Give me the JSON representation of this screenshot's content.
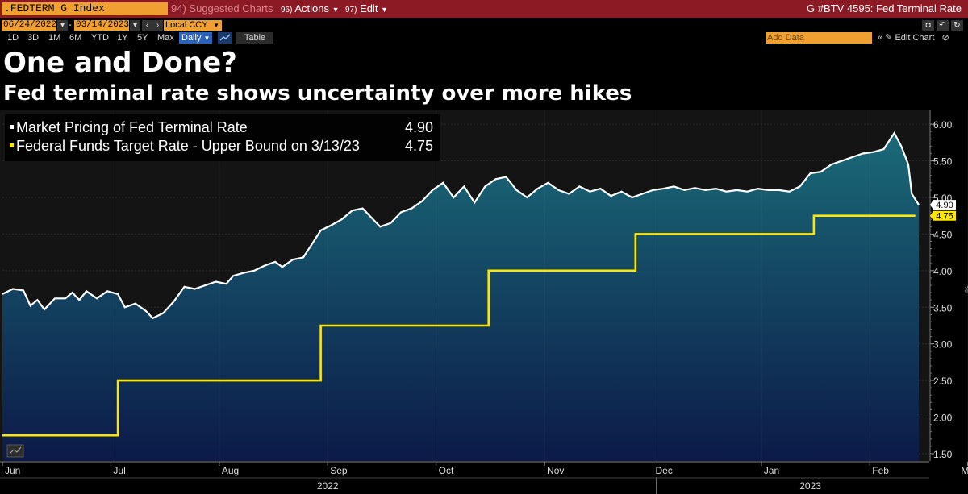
{
  "toolbar": {
    "command": ".FEDTERM G Index",
    "suggested_num": "94)",
    "suggested": "Suggested Charts",
    "actions_num": "96)",
    "actions": "Actions",
    "edit_num": "97)",
    "edit": "Edit",
    "window_title": "G #BTV 4595: Fed Terminal Rate"
  },
  "controls": {
    "start_date": "06/24/2022",
    "end_date": "03/14/2023",
    "currency": "Local CCY",
    "periods": [
      "1D",
      "3D",
      "1M",
      "6M",
      "YTD",
      "1Y",
      "5Y",
      "Max"
    ],
    "frequency": "Daily",
    "table": "Table",
    "add_data_placeholder": "Add Data",
    "edit_chart": "Edit Chart"
  },
  "headline": "One and Done?",
  "subheadline": "Fed terminal rate shows uncertainty over more hikes",
  "chart_data": {
    "type": "area",
    "ylim": [
      1.4,
      6.2
    ],
    "yticks": [
      "1.50",
      "2.00",
      "2.50",
      "3.00",
      "3.50",
      "4.00",
      "4.50",
      "5.00",
      "5.50",
      "6.00"
    ],
    "ytick_values": [
      1.5,
      2.0,
      2.5,
      3.0,
      3.5,
      4.0,
      4.5,
      5.0,
      5.5,
      6.0
    ],
    "y_unit": "%",
    "x_range_days": [
      0,
      265
    ],
    "x_month_labels": [
      "Jun",
      "Jul",
      "Aug",
      "Sep",
      "Oct",
      "Nov",
      "Dec",
      "Jan",
      "Feb",
      "Mar"
    ],
    "x_month_days": [
      0,
      31,
      62,
      93,
      124,
      155,
      186,
      217,
      248,
      276
    ],
    "x_year_labels": [
      "2022",
      "2023"
    ],
    "x_year_days": [
      93,
      231
    ],
    "x_year_boundary_day": 187,
    "series": [
      {
        "name": "Market Pricing of Fed Terminal Rate",
        "last_value": "4.90",
        "color": "#ffffff",
        "fill_top": "#1a6a78",
        "fill_bottom": "#0c1a48",
        "points": [
          [
            0,
            3.68
          ],
          [
            3,
            3.75
          ],
          [
            6,
            3.73
          ],
          [
            8,
            3.52
          ],
          [
            10,
            3.6
          ],
          [
            12,
            3.47
          ],
          [
            15,
            3.62
          ],
          [
            18,
            3.62
          ],
          [
            20,
            3.7
          ],
          [
            22,
            3.6
          ],
          [
            24,
            3.72
          ],
          [
            27,
            3.62
          ],
          [
            30,
            3.72
          ],
          [
            33,
            3.68
          ],
          [
            35,
            3.5
          ],
          [
            38,
            3.55
          ],
          [
            41,
            3.45
          ],
          [
            43,
            3.35
          ],
          [
            46,
            3.42
          ],
          [
            49,
            3.58
          ],
          [
            52,
            3.78
          ],
          [
            55,
            3.75
          ],
          [
            58,
            3.8
          ],
          [
            61,
            3.85
          ],
          [
            64,
            3.82
          ],
          [
            66,
            3.93
          ],
          [
            69,
            3.97
          ],
          [
            72,
            4.0
          ],
          [
            75,
            4.07
          ],
          [
            78,
            4.12
          ],
          [
            80,
            4.05
          ],
          [
            83,
            4.15
          ],
          [
            86,
            4.18
          ],
          [
            89,
            4.4
          ],
          [
            91,
            4.55
          ],
          [
            94,
            4.62
          ],
          [
            97,
            4.7
          ],
          [
            100,
            4.82
          ],
          [
            103,
            4.85
          ],
          [
            106,
            4.7
          ],
          [
            108,
            4.6
          ],
          [
            111,
            4.65
          ],
          [
            114,
            4.8
          ],
          [
            117,
            4.85
          ],
          [
            120,
            4.95
          ],
          [
            123,
            5.1
          ],
          [
            126,
            5.2
          ],
          [
            129,
            5.0
          ],
          [
            132,
            5.15
          ],
          [
            135,
            4.93
          ],
          [
            138,
            5.15
          ],
          [
            141,
            5.25
          ],
          [
            144,
            5.28
          ],
          [
            147,
            5.1
          ],
          [
            150,
            5.0
          ],
          [
            153,
            5.12
          ],
          [
            156,
            5.2
          ],
          [
            159,
            5.1
          ],
          [
            162,
            5.05
          ],
          [
            165,
            5.15
          ],
          [
            168,
            5.08
          ],
          [
            171,
            5.12
          ],
          [
            174,
            5.02
          ],
          [
            177,
            5.08
          ],
          [
            180,
            5.0
          ],
          [
            183,
            5.05
          ],
          [
            186,
            5.1
          ],
          [
            189,
            5.12
          ],
          [
            192,
            5.15
          ],
          [
            195,
            5.1
          ],
          [
            198,
            5.13
          ],
          [
            201,
            5.1
          ],
          [
            204,
            5.12
          ],
          [
            207,
            5.08
          ],
          [
            210,
            5.1
          ],
          [
            213,
            5.08
          ],
          [
            216,
            5.12
          ],
          [
            219,
            5.1
          ],
          [
            222,
            5.1
          ],
          [
            225,
            5.08
          ],
          [
            228,
            5.15
          ],
          [
            231,
            5.33
          ],
          [
            234,
            5.35
          ],
          [
            237,
            5.45
          ],
          [
            240,
            5.5
          ],
          [
            243,
            5.55
          ],
          [
            246,
            5.6
          ],
          [
            249,
            5.62
          ],
          [
            252,
            5.66
          ],
          [
            255,
            5.88
          ],
          [
            257,
            5.7
          ],
          [
            259,
            5.45
          ],
          [
            260,
            5.05
          ],
          [
            262,
            4.9
          ]
        ]
      },
      {
        "name": "Federal Funds Target Rate - Upper Bound on 3/13/23",
        "last_value": "4.75",
        "color": "#ffe600",
        "points": [
          [
            0,
            1.75
          ],
          [
            33,
            1.75
          ],
          [
            33,
            2.5
          ],
          [
            91,
            2.5
          ],
          [
            91,
            3.25
          ],
          [
            139,
            3.25
          ],
          [
            139,
            4.0
          ],
          [
            181,
            4.0
          ],
          [
            181,
            4.5
          ],
          [
            232,
            4.5
          ],
          [
            232,
            4.75
          ],
          [
            261,
            4.75
          ]
        ]
      }
    ]
  }
}
